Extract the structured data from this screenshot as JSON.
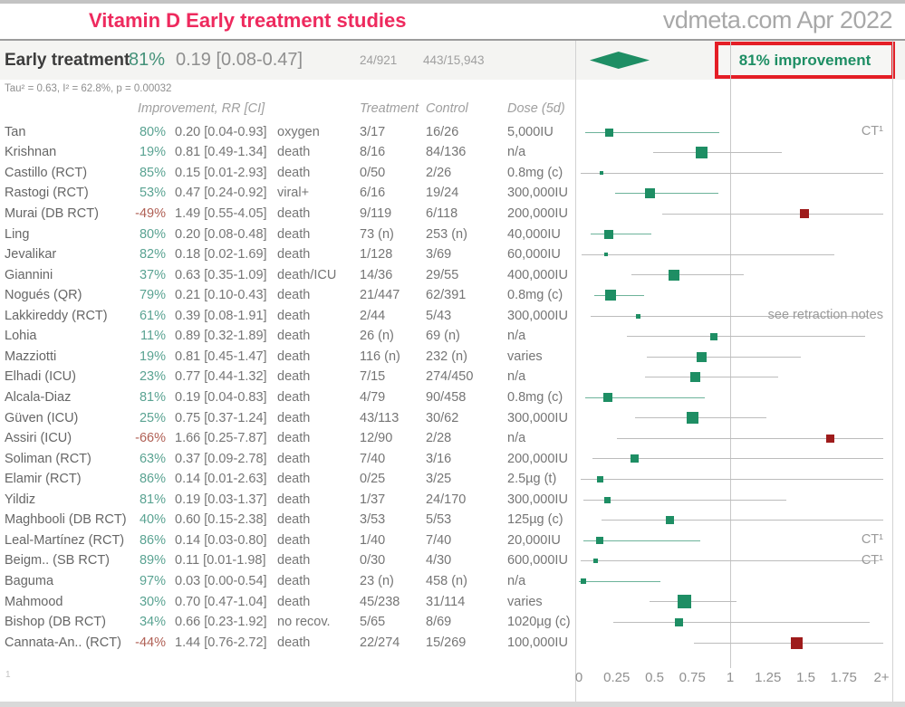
{
  "header": {
    "title": "Vitamin D Early treatment studies",
    "site": "vdmeta.com Apr 2022"
  },
  "summary": {
    "label": "Early treatment",
    "improvement": "81%",
    "rr_ci": "0.19 [0.08-0.47]",
    "treatment_count": "24/921",
    "control_count": "443/15,943",
    "badge": "81% improvement",
    "rr": 0.19,
    "lo": 0.08,
    "hi": 0.47
  },
  "stats_line": "Tau² = 0.63, I² = 62.8%, p = 0.00032",
  "columns": {
    "improvement_rr": "Improvement, RR [CI]",
    "treatment": "Treatment",
    "control": "Control",
    "dose": "Dose (5d)"
  },
  "footnote": "1",
  "colors": {
    "title_pink": "#ee2a5e",
    "positive_green": "#1e8e64",
    "improvement_text": "#5aa392",
    "negative_red": "#9e1b1b",
    "negative_text": "#b06055",
    "badge_border_red": "#e41e26",
    "ci_gray": "#bcbcbc",
    "ci_green": "#6db39a",
    "summary_bg": "#f4f4f2"
  },
  "chart_data": {
    "type": "forest",
    "title": "Vitamin D Early treatment studies",
    "xlim": [
      0,
      2.01
    ],
    "reference_line": 1,
    "tick_labels": [
      "0",
      "0.25",
      "0.5",
      "0.75",
      "1",
      "1.25",
      "1.5",
      "1.75",
      "2+"
    ],
    "tick_values": [
      0,
      0.25,
      0.5,
      0.75,
      1,
      1.25,
      1.5,
      1.75,
      2
    ],
    "pooled": {
      "rr": 0.19,
      "lo": 0.08,
      "hi": 0.47,
      "improvement": "81%"
    },
    "studies": [
      {
        "name": "Tan",
        "improvement": "80%",
        "rr_ci": "0.20 [0.04-0.93]",
        "outcome": "oxygen",
        "treatment": "3/17",
        "control": "16/26",
        "dose": "5,000IU",
        "rr": 0.2,
        "lo": 0.04,
        "hi": 0.93,
        "neg": false,
        "sig": true,
        "size": 9,
        "note": "CT¹"
      },
      {
        "name": "Krishnan",
        "improvement": "19%",
        "rr_ci": "0.81 [0.49-1.34]",
        "outcome": "death",
        "treatment": "8/16",
        "control": "84/136",
        "dose": "n/a",
        "rr": 0.81,
        "lo": 0.49,
        "hi": 1.34,
        "neg": false,
        "sig": false,
        "size": 13,
        "note": ""
      },
      {
        "name": "Castillo (RCT)",
        "improvement": "85%",
        "rr_ci": "0.15 [0.01-2.93]",
        "outcome": "death",
        "treatment": "0/50",
        "control": "2/26",
        "dose": "0.8mg (c)",
        "rr": 0.15,
        "lo": 0.01,
        "hi": 2.93,
        "neg": false,
        "sig": false,
        "size": 4,
        "note": ""
      },
      {
        "name": "Rastogi (RCT)",
        "improvement": "53%",
        "rr_ci": "0.47 [0.24-0.92]",
        "outcome": "viral+",
        "treatment": "6/16",
        "control": "19/24",
        "dose": "300,000IU",
        "rr": 0.47,
        "lo": 0.24,
        "hi": 0.92,
        "neg": false,
        "sig": true,
        "size": 11,
        "note": ""
      },
      {
        "name": "Murai (DB RCT)",
        "improvement": "-49%",
        "rr_ci": "1.49 [0.55-4.05]",
        "outcome": "death",
        "treatment": "9/119",
        "control": "6/118",
        "dose": "200,000IU",
        "rr": 1.49,
        "lo": 0.55,
        "hi": 4.05,
        "neg": true,
        "sig": false,
        "size": 10,
        "note": ""
      },
      {
        "name": "Ling",
        "improvement": "80%",
        "rr_ci": "0.20 [0.08-0.48]",
        "outcome": "death",
        "treatment": "73 (n)",
        "control": "253 (n)",
        "dose": "40,000IU",
        "rr": 0.2,
        "lo": 0.08,
        "hi": 0.48,
        "neg": false,
        "sig": true,
        "size": 10,
        "note": ""
      },
      {
        "name": "Jevalikar",
        "improvement": "82%",
        "rr_ci": "0.18 [0.02-1.69]",
        "outcome": "death",
        "treatment": "1/128",
        "control": "3/69",
        "dose": "60,000IU",
        "rr": 0.18,
        "lo": 0.02,
        "hi": 1.69,
        "neg": false,
        "sig": false,
        "size": 4,
        "note": ""
      },
      {
        "name": "Giannini",
        "improvement": "37%",
        "rr_ci": "0.63 [0.35-1.09]",
        "outcome": "death/ICU",
        "treatment": "14/36",
        "control": "29/55",
        "dose": "400,000IU",
        "rr": 0.63,
        "lo": 0.35,
        "hi": 1.09,
        "neg": false,
        "sig": false,
        "size": 12,
        "note": ""
      },
      {
        "name": "Nogués (QR)",
        "improvement": "79%",
        "rr_ci": "0.21 [0.10-0.43]",
        "outcome": "death",
        "treatment": "21/447",
        "control": "62/391",
        "dose": "0.8mg (c)",
        "rr": 0.21,
        "lo": 0.1,
        "hi": 0.43,
        "neg": false,
        "sig": true,
        "size": 12,
        "note": ""
      },
      {
        "name": "Lakkireddy (RCT)",
        "improvement": "61%",
        "rr_ci": "0.39 [0.08-1.91]",
        "outcome": "death",
        "treatment": "2/44",
        "control": "5/43",
        "dose": "300,000IU",
        "rr": 0.39,
        "lo": 0.08,
        "hi": 1.91,
        "neg": false,
        "sig": false,
        "size": 5,
        "note": "see retraction notes"
      },
      {
        "name": "Lohia",
        "improvement": "11%",
        "rr_ci": "0.89 [0.32-1.89]",
        "outcome": "death",
        "treatment": "26 (n)",
        "control": "69 (n)",
        "dose": "n/a",
        "rr": 0.89,
        "lo": 0.32,
        "hi": 1.89,
        "neg": false,
        "sig": false,
        "size": 8,
        "note": ""
      },
      {
        "name": "Mazziotti",
        "improvement": "19%",
        "rr_ci": "0.81 [0.45-1.47]",
        "outcome": "death",
        "treatment": "116 (n)",
        "control": "232 (n)",
        "dose": "varies",
        "rr": 0.81,
        "lo": 0.45,
        "hi": 1.47,
        "neg": false,
        "sig": false,
        "size": 11,
        "note": ""
      },
      {
        "name": "Elhadi (ICU)",
        "improvement": "23%",
        "rr_ci": "0.77 [0.44-1.32]",
        "outcome": "death",
        "treatment": "7/15",
        "control": "274/450",
        "dose": "n/a",
        "rr": 0.77,
        "lo": 0.44,
        "hi": 1.32,
        "neg": false,
        "sig": false,
        "size": 11,
        "note": ""
      },
      {
        "name": "Alcala-Diaz",
        "improvement": "81%",
        "rr_ci": "0.19 [0.04-0.83]",
        "outcome": "death",
        "treatment": "4/79",
        "control": "90/458",
        "dose": "0.8mg (c)",
        "rr": 0.19,
        "lo": 0.04,
        "hi": 0.83,
        "neg": false,
        "sig": true,
        "size": 10,
        "note": ""
      },
      {
        "name": "Güven (ICU)",
        "improvement": "25%",
        "rr_ci": "0.75 [0.37-1.24]",
        "outcome": "death",
        "treatment": "43/113",
        "control": "30/62",
        "dose": "300,000IU",
        "rr": 0.75,
        "lo": 0.37,
        "hi": 1.24,
        "neg": false,
        "sig": false,
        "size": 13,
        "note": ""
      },
      {
        "name": "Assiri (ICU)",
        "improvement": "-66%",
        "rr_ci": "1.66 [0.25-7.87]",
        "outcome": "death",
        "treatment": "12/90",
        "control": "2/28",
        "dose": "n/a",
        "rr": 1.66,
        "lo": 0.25,
        "hi": 7.87,
        "neg": true,
        "sig": false,
        "size": 9,
        "note": ""
      },
      {
        "name": "Soliman (RCT)",
        "improvement": "63%",
        "rr_ci": "0.37 [0.09-2.78]",
        "outcome": "death",
        "treatment": "7/40",
        "control": "3/16",
        "dose": "200,000IU",
        "rr": 0.37,
        "lo": 0.09,
        "hi": 2.78,
        "neg": false,
        "sig": false,
        "size": 9,
        "note": ""
      },
      {
        "name": "Elamir (RCT)",
        "improvement": "86%",
        "rr_ci": "0.14 [0.01-2.63]",
        "outcome": "death",
        "treatment": "0/25",
        "control": "3/25",
        "dose": "2.5µg (t)",
        "rr": 0.14,
        "lo": 0.01,
        "hi": 2.63,
        "neg": false,
        "sig": false,
        "size": 7,
        "note": ""
      },
      {
        "name": "Yildiz",
        "improvement": "81%",
        "rr_ci": "0.19 [0.03-1.37]",
        "outcome": "death",
        "treatment": "1/37",
        "control": "24/170",
        "dose": "300,000IU",
        "rr": 0.19,
        "lo": 0.03,
        "hi": 1.37,
        "neg": false,
        "sig": false,
        "size": 7,
        "note": ""
      },
      {
        "name": "Maghbooli (DB RCT)",
        "improvement": "40%",
        "rr_ci": "0.60 [0.15-2.38]",
        "outcome": "death",
        "treatment": "3/53",
        "control": "5/53",
        "dose": "125µg (c)",
        "rr": 0.6,
        "lo": 0.15,
        "hi": 2.38,
        "neg": false,
        "sig": false,
        "size": 9,
        "note": ""
      },
      {
        "name": "Leal-Martínez (RCT)",
        "improvement": "86%",
        "rr_ci": "0.14 [0.03-0.80]",
        "outcome": "death",
        "treatment": "1/40",
        "control": "7/40",
        "dose": "20,000IU",
        "rr": 0.14,
        "lo": 0.03,
        "hi": 0.8,
        "neg": false,
        "sig": true,
        "size": 8,
        "note": "CT¹"
      },
      {
        "name": "Beigm.. (SB RCT)",
        "improvement": "89%",
        "rr_ci": "0.11 [0.01-1.98]",
        "outcome": "death",
        "treatment": "0/30",
        "control": "4/30",
        "dose": "600,000IU",
        "rr": 0.11,
        "lo": 0.01,
        "hi": 1.98,
        "neg": false,
        "sig": false,
        "size": 5,
        "note": "CT¹"
      },
      {
        "name": "Baguma",
        "improvement": "97%",
        "rr_ci": "0.03 [0.00-0.54]",
        "outcome": "death",
        "treatment": "23 (n)",
        "control": "458 (n)",
        "dose": "n/a",
        "rr": 0.03,
        "lo": 0.0,
        "hi": 0.54,
        "neg": false,
        "sig": true,
        "size": 6,
        "note": ""
      },
      {
        "name": "Mahmood",
        "improvement": "30%",
        "rr_ci": "0.70 [0.47-1.04]",
        "outcome": "death",
        "treatment": "45/238",
        "control": "31/114",
        "dose": "varies",
        "rr": 0.7,
        "lo": 0.47,
        "hi": 1.04,
        "neg": false,
        "sig": false,
        "size": 15,
        "note": ""
      },
      {
        "name": "Bishop (DB RCT)",
        "improvement": "34%",
        "rr_ci": "0.66 [0.23-1.92]",
        "outcome": "no recov.",
        "treatment": "5/65",
        "control": "8/69",
        "dose": "1020µg (c)",
        "rr": 0.66,
        "lo": 0.23,
        "hi": 1.92,
        "neg": false,
        "sig": false,
        "size": 9,
        "note": ""
      },
      {
        "name": "Cannata-An.. (RCT)",
        "improvement": "-44%",
        "rr_ci": "1.44 [0.76-2.72]",
        "outcome": "death",
        "treatment": "22/274",
        "control": "15/269",
        "dose": "100,000IU",
        "rr": 1.44,
        "lo": 0.76,
        "hi": 2.72,
        "neg": true,
        "sig": false,
        "size": 13,
        "note": ""
      }
    ]
  }
}
